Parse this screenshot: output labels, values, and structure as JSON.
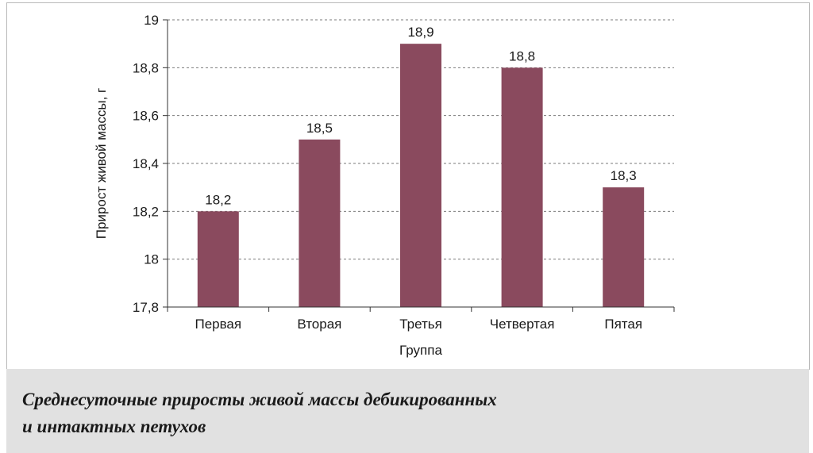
{
  "chart_data": {
    "type": "bar",
    "categories": [
      "Первая",
      "Вторая",
      "Третья",
      "Четвертая",
      "Пятая"
    ],
    "values": [
      18.2,
      18.5,
      18.9,
      18.8,
      18.3
    ],
    "value_labels": [
      "18,2",
      "18,5",
      "18,9",
      "18,8",
      "18,3"
    ],
    "xlabel": "Группа",
    "ylabel": "Прирост живой массы, г",
    "ylim": [
      17.8,
      19
    ],
    "yticks": [
      17.8,
      18,
      18.2,
      18.4,
      18.6,
      18.8,
      19
    ],
    "ytick_labels": [
      "17,8",
      "18",
      "18,2",
      "18,4",
      "18,6",
      "18,8",
      "19"
    ],
    "grid": "horizontal dashed",
    "legend": "none",
    "bar_color": "#8a4a5e"
  },
  "caption": {
    "line1": "Среднесуточные приросты живой массы дебикированных",
    "line2": "и интактных петухов"
  }
}
